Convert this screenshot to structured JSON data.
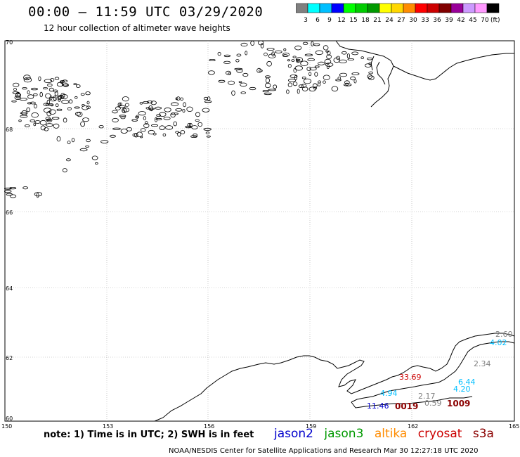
{
  "header": {
    "title": "00:00 – 11:59 UTC 03/29/2020",
    "subtitle": "12 hour collection of altimeter wave heights"
  },
  "color_scale": {
    "unit": "(ft)",
    "bins": [
      {
        "label": "3",
        "color": "#808080"
      },
      {
        "label": "6",
        "color": "#00ffff"
      },
      {
        "label": "9",
        "color": "#00bfff"
      },
      {
        "label": "12",
        "color": "#0000ff"
      },
      {
        "label": "15",
        "color": "#00ff00"
      },
      {
        "label": "18",
        "color": "#00cc00"
      },
      {
        "label": "21",
        "color": "#009900"
      },
      {
        "label": "24",
        "color": "#ffff00"
      },
      {
        "label": "27",
        "color": "#ffd700"
      },
      {
        "label": "30",
        "color": "#ff8c00"
      },
      {
        "label": "33",
        "color": "#ff0000"
      },
      {
        "label": "36",
        "color": "#cc0000"
      },
      {
        "label": "39",
        "color": "#800000"
      },
      {
        "label": "42",
        "color": "#990099"
      },
      {
        "label": "45",
        "color": "#cc99ff"
      },
      {
        "label": "70",
        "color": "#ff99ff"
      },
      {
        "label": "",
        "color": "#000000"
      }
    ]
  },
  "map": {
    "lat_labels": [
      "70",
      "68",
      "66",
      "64",
      "62",
      "60"
    ],
    "lon_labels": [
      "150",
      "153",
      "156",
      "159",
      "162",
      "165"
    ],
    "lat_range": [
      60,
      70
    ],
    "lon_range": [
      150,
      165
    ]
  },
  "observations": [
    {
      "text": "2.60",
      "color": "#808080"
    },
    {
      "text": "4.02",
      "color": "#00bfff"
    },
    {
      "text": "2.34",
      "color": "#808080"
    },
    {
      "text": "33.69",
      "color": "#cc0000"
    },
    {
      "text": "6.44",
      "color": "#00bfff"
    },
    {
      "text": "4.94",
      "color": "#00bfff"
    },
    {
      "text": "4.20",
      "color": "#00bfff"
    },
    {
      "text": "2.17",
      "color": "#808080"
    },
    {
      "text": "11.46",
      "color": "#0000cc"
    },
    {
      "text": "0.59",
      "color": "#808080"
    }
  ],
  "cycle_labels": [
    "0019",
    "1009"
  ],
  "footer": {
    "note": "note: 1) Time is in UTC; 2) SWH is in feet",
    "satellites": [
      {
        "name": "jason2",
        "color": "#0000cc"
      },
      {
        "name": "jason3",
        "color": "#009900"
      },
      {
        "name": "altika",
        "color": "#ff8c00"
      },
      {
        "name": "cryosat",
        "color": "#cc0000"
      },
      {
        "name": "s3a",
        "color": "#8b0000"
      }
    ],
    "credit": "NOAA/NESDIS Center for Satellite Applications and Research    Mar 30 12:27:18 UTC 2020"
  }
}
